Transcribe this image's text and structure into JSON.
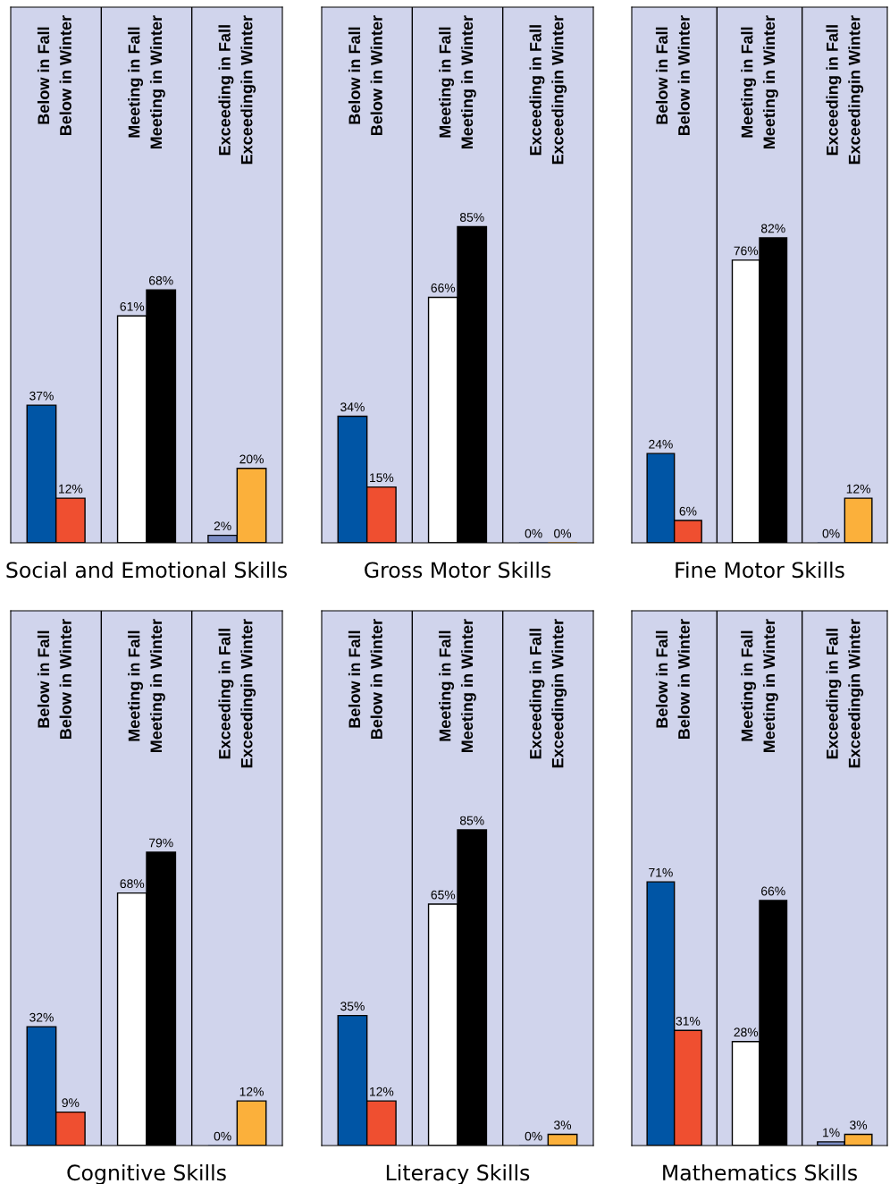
{
  "chart_data": [
    {
      "type": "bar",
      "title": "Social and Emotional Skills",
      "categories": [
        "Below in Fall\nBelow in Winter",
        "Meeting in Fall\nMeeting in Winter",
        "Exceeding in Fall\nExceedingin Winter"
      ],
      "ylim": [
        0,
        144
      ],
      "series": [
        {
          "colors": [
            "#0055a5",
            "#ffffff",
            "#7b8cc4"
          ],
          "values": [
            37,
            61,
            2
          ],
          "value_labels": [
            "37%",
            "61%",
            "2%"
          ]
        },
        {
          "colors": [
            "#ef4f30",
            "#000000",
            "#fbb03b"
          ],
          "values": [
            12,
            68,
            20
          ],
          "value_labels": [
            "12%",
            "68%",
            "20%"
          ]
        }
      ]
    },
    {
      "type": "bar",
      "title": "Gross Motor Skills",
      "categories": [
        "Below in Fall\nBelow in Winter",
        "Meeting in Fall\nMeeting in Winter",
        "Exceeding in Fall\nExceedingin Winter"
      ],
      "ylim": [
        0,
        144
      ],
      "series": [
        {
          "colors": [
            "#0055a5",
            "#ffffff",
            "#7b8cc4"
          ],
          "values": [
            34,
            66,
            0
          ],
          "value_labels": [
            "34%",
            "66%",
            "0%"
          ]
        },
        {
          "colors": [
            "#ef4f30",
            "#000000",
            "#fbb03b"
          ],
          "values": [
            15,
            85,
            0
          ],
          "value_labels": [
            "15%",
            "85%",
            "0%"
          ]
        }
      ]
    },
    {
      "type": "bar",
      "title": "Fine Motor Skills",
      "categories": [
        "Below in Fall\nBelow in Winter",
        "Meeting in Fall\nMeeting in Winter",
        "Exceeding in Fall\nExceedingin Winter"
      ],
      "ylim": [
        0,
        144
      ],
      "series": [
        {
          "colors": [
            "#0055a5",
            "#ffffff",
            "#7b8cc4"
          ],
          "values": [
            24,
            76,
            0
          ],
          "value_labels": [
            "24%",
            "76%",
            "0%"
          ]
        },
        {
          "colors": [
            "#ef4f30",
            "#000000",
            "#fbb03b"
          ],
          "values": [
            6,
            82,
            12
          ],
          "value_labels": [
            "6%",
            "82%",
            "12%"
          ]
        }
      ]
    },
    {
      "type": "bar",
      "title": "Cognitive Skills",
      "categories": [
        "Below in Fall\nBelow in Winter",
        "Meeting in Fall\nMeeting in Winter",
        "Exceeding in Fall\nExceedingin Winter"
      ],
      "ylim": [
        0,
        144
      ],
      "series": [
        {
          "colors": [
            "#0055a5",
            "#ffffff",
            "#7b8cc4"
          ],
          "values": [
            32,
            68,
            0
          ],
          "value_labels": [
            "32%",
            "68%",
            "0%"
          ]
        },
        {
          "colors": [
            "#ef4f30",
            "#000000",
            "#fbb03b"
          ],
          "values": [
            9,
            79,
            12
          ],
          "value_labels": [
            "9%",
            "79%",
            "12%"
          ]
        }
      ]
    },
    {
      "type": "bar",
      "title": "Literacy Skills",
      "categories": [
        "Below in Fall\nBelow in Winter",
        "Meeting in Fall\nMeeting in Winter",
        "Exceeding in Fall\nExceedingin Winter"
      ],
      "ylim": [
        0,
        144
      ],
      "series": [
        {
          "colors": [
            "#0055a5",
            "#ffffff",
            "#7b8cc4"
          ],
          "values": [
            35,
            65,
            0
          ],
          "value_labels": [
            "35%",
            "65%",
            "0%"
          ]
        },
        {
          "colors": [
            "#ef4f30",
            "#000000",
            "#fbb03b"
          ],
          "values": [
            12,
            85,
            3
          ],
          "value_labels": [
            "12%",
            "85%",
            "3%"
          ]
        }
      ]
    },
    {
      "type": "bar",
      "title": "Mathematics Skills",
      "categories": [
        "Below in Fall\nBelow in Winter",
        "Meeting in Fall\nMeeting in Winter",
        "Exceeding in Fall\nExceedingin Winter"
      ],
      "ylim": [
        0,
        144
      ],
      "series": [
        {
          "colors": [
            "#0055a5",
            "#ffffff",
            "#7b8cc4"
          ],
          "values": [
            71,
            28,
            1
          ],
          "value_labels": [
            "71%",
            "28%",
            "1%"
          ]
        },
        {
          "colors": [
            "#ef4f30",
            "#000000",
            "#fbb03b"
          ],
          "values": [
            31,
            66,
            3
          ],
          "value_labels": [
            "31%",
            "66%",
            "3%"
          ]
        }
      ]
    }
  ]
}
